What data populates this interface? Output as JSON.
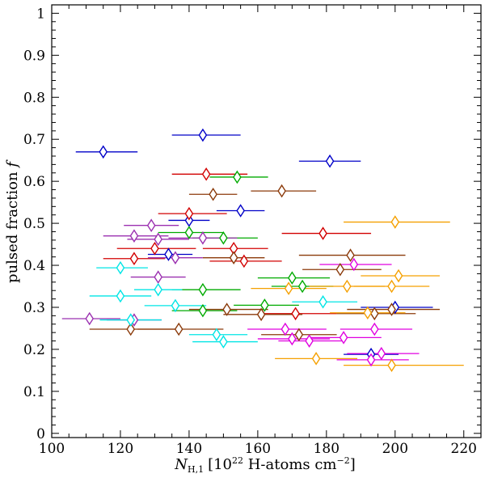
{
  "chart_data": {
    "type": "scatter",
    "title": "",
    "xlabel": "N_{H,1} [10^{22} H-atoms cm^{-2}]",
    "ylabel": "pulsed fraction f",
    "xlim": [
      100,
      225
    ],
    "ylim": [
      -0.01,
      1.02
    ],
    "x_ticks": [
      100,
      120,
      140,
      160,
      180,
      200,
      220
    ],
    "y_ticks": [
      0,
      0.1,
      0.2,
      0.3,
      0.4,
      0.5,
      0.6,
      0.7,
      0.8,
      0.9,
      1
    ],
    "x_tick_labels": [
      "100",
      "120",
      "140",
      "160",
      "180",
      "200",
      "220"
    ],
    "y_tick_labels": [
      "0",
      "0.1",
      "0.2",
      "0.3",
      "0.4",
      "0.5",
      "0.6",
      "0.7",
      "0.8",
      "0.9",
      "1"
    ],
    "marker": "diamond",
    "error_bars": "horizontal",
    "series": [
      {
        "name": "blue",
        "color": "#0000c8",
        "points": [
          {
            "x": 115,
            "y": 0.67,
            "xerr": [
              107,
              125
            ]
          },
          {
            "x": 144,
            "y": 0.71,
            "xerr": [
              135,
              155
            ]
          },
          {
            "x": 181,
            "y": 0.648,
            "xerr": [
              172,
              190
            ]
          },
          {
            "x": 155,
            "y": 0.53,
            "xerr": [
              148,
              162
            ]
          },
          {
            "x": 140,
            "y": 0.507,
            "xerr": [
              134,
              146
            ]
          },
          {
            "x": 134,
            "y": 0.426,
            "xerr": [
              128,
              141
            ]
          },
          {
            "x": 200,
            "y": 0.3,
            "xerr": [
              190,
              211
            ]
          },
          {
            "x": 193,
            "y": 0.188,
            "xerr": [
              185,
              201
            ]
          }
        ]
      },
      {
        "name": "red",
        "color": "#d20000",
        "points": [
          {
            "x": 145,
            "y": 0.617,
            "xerr": [
              135,
              157
            ]
          },
          {
            "x": 140,
            "y": 0.523,
            "xerr": [
              131,
              151
            ]
          },
          {
            "x": 179,
            "y": 0.476,
            "xerr": [
              167,
              193
            ]
          },
          {
            "x": 153,
            "y": 0.44,
            "xerr": [
              144,
              163
            ]
          },
          {
            "x": 130,
            "y": 0.44,
            "xerr": [
              119,
              142
            ]
          },
          {
            "x": 124,
            "y": 0.416,
            "xerr": [
              115,
              133
            ]
          },
          {
            "x": 156,
            "y": 0.41,
            "xerr": [
              146,
              167
            ]
          },
          {
            "x": 171,
            "y": 0.285,
            "xerr": [
              160,
              183
            ]
          }
        ]
      },
      {
        "name": "green",
        "color": "#00aa00",
        "points": [
          {
            "x": 154,
            "y": 0.61,
            "xerr": [
              146,
              163
            ]
          },
          {
            "x": 140,
            "y": 0.478,
            "xerr": [
              131,
              150
            ]
          },
          {
            "x": 150,
            "y": 0.465,
            "xerr": [
              141,
              160
            ]
          },
          {
            "x": 170,
            "y": 0.37,
            "xerr": [
              160,
              181
            ]
          },
          {
            "x": 173,
            "y": 0.35,
            "xerr": [
              164,
              182
            ]
          },
          {
            "x": 144,
            "y": 0.342,
            "xerr": [
              135,
              155
            ]
          },
          {
            "x": 162,
            "y": 0.305,
            "xerr": [
              153,
              172
            ]
          },
          {
            "x": 144,
            "y": 0.292,
            "xerr": [
              135,
              154
            ]
          }
        ]
      },
      {
        "name": "brown",
        "color": "#8b3a0a",
        "points": [
          {
            "x": 167,
            "y": 0.577,
            "xerr": [
              158,
              177
            ]
          },
          {
            "x": 147,
            "y": 0.569,
            "xerr": [
              140,
              154
            ]
          },
          {
            "x": 187,
            "y": 0.424,
            "xerr": [
              172,
              203
            ]
          },
          {
            "x": 153,
            "y": 0.418,
            "xerr": [
              144,
              162
            ]
          },
          {
            "x": 184,
            "y": 0.39,
            "xerr": [
              173,
              196
            ]
          },
          {
            "x": 194,
            "y": 0.285,
            "xerr": [
              183,
              206
            ]
          },
          {
            "x": 199,
            "y": 0.295,
            "xerr": [
              186,
              213
            ]
          },
          {
            "x": 151,
            "y": 0.295,
            "xerr": [
              140,
              163
            ]
          },
          {
            "x": 161,
            "y": 0.283,
            "xerr": [
              150,
              173
            ]
          },
          {
            "x": 123,
            "y": 0.248,
            "xerr": [
              111,
              136
            ]
          },
          {
            "x": 137,
            "y": 0.248,
            "xerr": [
              125,
              150
            ]
          },
          {
            "x": 172,
            "y": 0.235,
            "xerr": [
              161,
              183
            ]
          }
        ]
      },
      {
        "name": "purple",
        "color": "#9b30b0",
        "points": [
          {
            "x": 129,
            "y": 0.495,
            "xerr": [
              121,
              137
            ]
          },
          {
            "x": 124,
            "y": 0.47,
            "xerr": [
              115,
              134
            ]
          },
          {
            "x": 144,
            "y": 0.465,
            "xerr": [
              134,
              154
            ]
          },
          {
            "x": 131,
            "y": 0.462,
            "xerr": [
              122,
              140
            ]
          },
          {
            "x": 136,
            "y": 0.418,
            "xerr": [
              128,
              144
            ]
          },
          {
            "x": 131,
            "y": 0.372,
            "xerr": [
              123,
              139
            ]
          },
          {
            "x": 111,
            "y": 0.273,
            "xerr": [
              103,
              120
            ]
          },
          {
            "x": 124,
            "y": 0.27,
            "xerr": [
              116,
              132
            ]
          }
        ]
      },
      {
        "name": "magenta",
        "color": "#e000e0",
        "points": [
          {
            "x": 188,
            "y": 0.402,
            "xerr": [
              178,
              199
            ]
          },
          {
            "x": 168,
            "y": 0.248,
            "xerr": [
              157,
              180
            ]
          },
          {
            "x": 194,
            "y": 0.248,
            "xerr": [
              184,
              205
            ]
          },
          {
            "x": 185,
            "y": 0.228,
            "xerr": [
              175,
              196
            ]
          },
          {
            "x": 170,
            "y": 0.225,
            "xerr": [
              160,
              181
            ]
          },
          {
            "x": 175,
            "y": 0.22,
            "xerr": [
              166,
              185
            ]
          },
          {
            "x": 196,
            "y": 0.19,
            "xerr": [
              186,
              207
            ]
          },
          {
            "x": 193,
            "y": 0.175,
            "xerr": [
              183,
              204
            ]
          }
        ]
      },
      {
        "name": "orange",
        "color": "#f5a000",
        "points": [
          {
            "x": 200,
            "y": 0.503,
            "xerr": [
              185,
              216
            ]
          },
          {
            "x": 201,
            "y": 0.375,
            "xerr": [
              190,
              213
            ]
          },
          {
            "x": 169,
            "y": 0.345,
            "xerr": [
              158,
              180
            ]
          },
          {
            "x": 186,
            "y": 0.35,
            "xerr": [
              175,
              197
            ]
          },
          {
            "x": 199,
            "y": 0.35,
            "xerr": [
              188,
              210
            ]
          },
          {
            "x": 192,
            "y": 0.287,
            "xerr": [
              181,
              203
            ]
          },
          {
            "x": 177,
            "y": 0.178,
            "xerr": [
              165,
              189
            ]
          },
          {
            "x": 199,
            "y": 0.162,
            "xerr": [
              185,
              220
            ]
          }
        ]
      },
      {
        "name": "cyan",
        "color": "#00e5e5",
        "points": [
          {
            "x": 120,
            "y": 0.394,
            "xerr": [
              113,
              128
            ]
          },
          {
            "x": 131,
            "y": 0.342,
            "xerr": [
              124,
              138
            ]
          },
          {
            "x": 120,
            "y": 0.327,
            "xerr": [
              111,
              129
            ]
          },
          {
            "x": 179,
            "y": 0.313,
            "xerr": [
              170,
              189
            ]
          },
          {
            "x": 136,
            "y": 0.304,
            "xerr": [
              127,
              145
            ]
          },
          {
            "x": 123,
            "y": 0.27,
            "xerr": [
              114,
              132
            ]
          },
          {
            "x": 148,
            "y": 0.235,
            "xerr": [
              140,
              157
            ]
          },
          {
            "x": 150,
            "y": 0.218,
            "xerr": [
              141,
              160
            ]
          }
        ]
      }
    ]
  }
}
